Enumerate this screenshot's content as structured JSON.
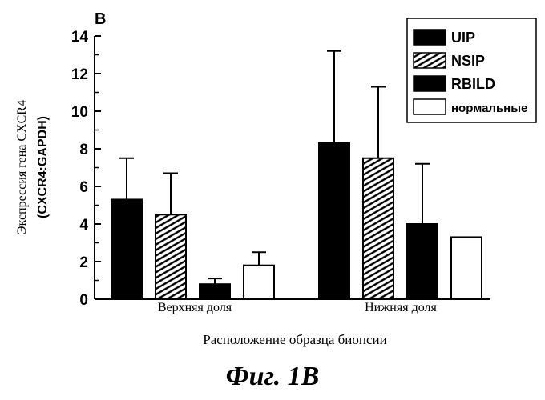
{
  "chart_data": {
    "type": "bar",
    "panel_label": "B",
    "categories": [
      "Верхняя доля",
      "Нижняя доля"
    ],
    "series": [
      {
        "name": "UIP",
        "values": [
          5.3,
          8.3
        ],
        "errors": [
          2.2,
          4.9
        ],
        "fill": "solid"
      },
      {
        "name": "NSIP",
        "values": [
          4.5,
          7.5
        ],
        "errors": [
          2.2,
          3.8
        ],
        "fill": "hatched"
      },
      {
        "name": "RBILD",
        "values": [
          0.8,
          4.0
        ],
        "errors": [
          0.3,
          3.2
        ],
        "fill": "solid"
      },
      {
        "name": "нормальные",
        "values": [
          1.8,
          3.3
        ],
        "errors": [
          0.7,
          0
        ],
        "fill": "white"
      }
    ],
    "xlabel": "Расположение образца биопсии",
    "ylabel_line1": "Экспрессия гена CXCR4",
    "ylabel_line2": "(CXCR4:GAPDH)",
    "ylim": [
      0,
      14
    ],
    "yticks": [
      "0",
      "2",
      "4",
      "6",
      "8",
      "10",
      "12",
      "14"
    ],
    "legend_position": "top-right",
    "grid": false
  },
  "caption": "Фиг. 1В",
  "colors": {
    "bar": "#000000",
    "background": "#ffffff"
  }
}
